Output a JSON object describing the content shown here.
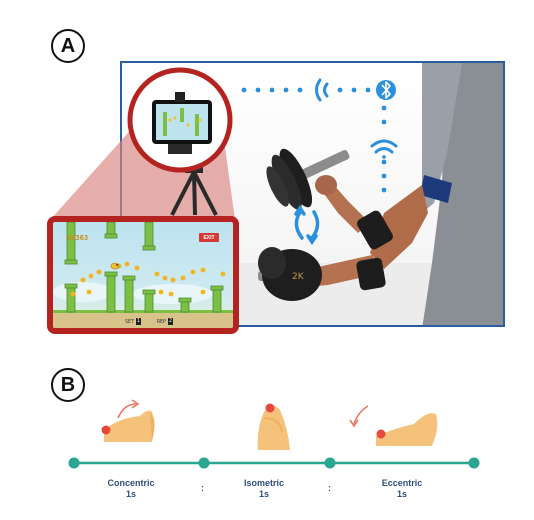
{
  "panels": {
    "a": "A",
    "b": "B"
  },
  "game": {
    "score": "00363",
    "exit_label": "EXIT",
    "set_label": "SET",
    "set_value": "1",
    "rep_label": "REP",
    "rep_value": "2"
  },
  "dumbbell_weight": "2K",
  "icons": [
    "bluetooth-icon",
    "wifi-signal-icon",
    "rotation-arrows-icon",
    "flex-arm-icon"
  ],
  "phases": [
    {
      "name": "Concentric",
      "duration": "1s"
    },
    {
      "name": "Isometric",
      "duration": "1s"
    },
    {
      "name": "Eccentric",
      "duration": "1s"
    }
  ],
  "separators": [
    ":",
    ":"
  ],
  "colors": {
    "timeline": "#2aa58f",
    "frame_blue": "#2a5f9e",
    "zoom_red": "#b4231f",
    "signal_blue": "#2b8fdc",
    "arm_skin": "#f5c27c",
    "label_navy": "#2f4f7f"
  }
}
